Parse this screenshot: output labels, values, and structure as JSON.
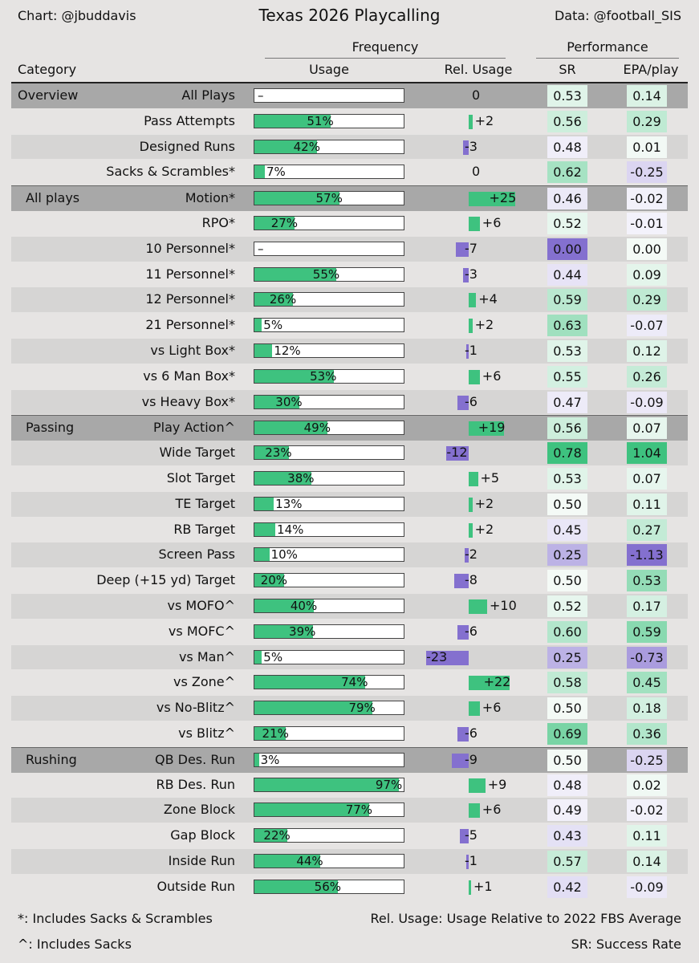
{
  "header": {
    "credit_left": "Chart: @jbuddavis",
    "title": "Texas 2026 Playcalling",
    "credit_right": "Data: @football_SIS",
    "group_frequency": "Frequency",
    "group_performance": "Performance",
    "col_category": "Category",
    "col_usage": "Usage",
    "col_rel_usage": "Rel. Usage",
    "col_sr": "SR",
    "col_epa": "EPA/play"
  },
  "footer": {
    "note_sacks_scrambles": "*: Includes Sacks & Scrambles",
    "note_sacks": "^: Includes Sacks",
    "note_rel_usage": "Rel. Usage: Usage Relative to 2022 FBS Average",
    "note_sr": "SR: Success Rate"
  },
  "colors": {
    "usage_bar": "#3ec27f",
    "positive_rel": "#3ec27f",
    "negative_rel": "#8470cf",
    "section_row": "#a8a8a8",
    "row_dark": "#d6d5d4",
    "row_light": "#e6e4e3"
  },
  "chart_data": {
    "type": "table",
    "title": "Texas 2026 Playcalling",
    "columns": [
      "Category",
      "Usage",
      "Rel. Usage",
      "SR",
      "EPA/play"
    ],
    "rows": [
      {
        "category": "Overview",
        "label": "All Plays",
        "usage": null,
        "usage_text": "–",
        "rel": 0,
        "rel_text": "0",
        "sr": 0.53,
        "sr_text": "0.53",
        "epa": 0.14,
        "epa_text": "0.14"
      },
      {
        "category": "",
        "label": "Pass Attempts",
        "usage": 51,
        "usage_text": "51%",
        "rel": 2,
        "rel_text": "+2",
        "sr": 0.56,
        "sr_text": "0.56",
        "epa": 0.29,
        "epa_text": "0.29"
      },
      {
        "category": "",
        "label": "Designed Runs",
        "usage": 42,
        "usage_text": "42%",
        "rel": -3,
        "rel_text": "-3",
        "sr": 0.48,
        "sr_text": "0.48",
        "epa": 0.01,
        "epa_text": "0.01"
      },
      {
        "category": "",
        "label": "Sacks & Scrambles*",
        "usage": 7,
        "usage_text": "7%",
        "rel": 0,
        "rel_text": "0",
        "sr": 0.62,
        "sr_text": "0.62",
        "epa": -0.25,
        "epa_text": "-0.25"
      },
      {
        "category": "All plays",
        "label": "Motion*",
        "usage": 57,
        "usage_text": "57%",
        "rel": 25,
        "rel_text": "+25",
        "sr": 0.46,
        "sr_text": "0.46",
        "epa": -0.02,
        "epa_text": "-0.02"
      },
      {
        "category": "",
        "label": "RPO*",
        "usage": 27,
        "usage_text": "27%",
        "rel": 6,
        "rel_text": "+6",
        "sr": 0.52,
        "sr_text": "0.52",
        "epa": -0.01,
        "epa_text": "-0.01"
      },
      {
        "category": "",
        "label": "10 Personnel*",
        "usage": null,
        "usage_text": "–",
        "rel": -7,
        "rel_text": "-7",
        "sr": 0.0,
        "sr_text": "0.00",
        "epa": 0.0,
        "epa_text": "0.00"
      },
      {
        "category": "",
        "label": "11 Personnel*",
        "usage": 55,
        "usage_text": "55%",
        "rel": -3,
        "rel_text": "-3",
        "sr": 0.44,
        "sr_text": "0.44",
        "epa": 0.09,
        "epa_text": "0.09"
      },
      {
        "category": "",
        "label": "12 Personnel*",
        "usage": 26,
        "usage_text": "26%",
        "rel": 4,
        "rel_text": "+4",
        "sr": 0.59,
        "sr_text": "0.59",
        "epa": 0.29,
        "epa_text": "0.29"
      },
      {
        "category": "",
        "label": "21 Personnel*",
        "usage": 5,
        "usage_text": "5%",
        "rel": 2,
        "rel_text": "+2",
        "sr": 0.63,
        "sr_text": "0.63",
        "epa": -0.07,
        "epa_text": "-0.07"
      },
      {
        "category": "",
        "label": "vs Light Box*",
        "usage": 12,
        "usage_text": "12%",
        "rel": -1,
        "rel_text": "-1",
        "sr": 0.53,
        "sr_text": "0.53",
        "epa": 0.12,
        "epa_text": "0.12"
      },
      {
        "category": "",
        "label": "vs 6 Man Box*",
        "usage": 53,
        "usage_text": "53%",
        "rel": 6,
        "rel_text": "+6",
        "sr": 0.55,
        "sr_text": "0.55",
        "epa": 0.26,
        "epa_text": "0.26"
      },
      {
        "category": "",
        "label": "vs Heavy Box*",
        "usage": 30,
        "usage_text": "30%",
        "rel": -6,
        "rel_text": "-6",
        "sr": 0.47,
        "sr_text": "0.47",
        "epa": -0.09,
        "epa_text": "-0.09"
      },
      {
        "category": "Passing",
        "label": "Play Action^",
        "usage": 49,
        "usage_text": "49%",
        "rel": 19,
        "rel_text": "+19",
        "sr": 0.56,
        "sr_text": "0.56",
        "epa": 0.07,
        "epa_text": "0.07"
      },
      {
        "category": "",
        "label": "Wide Target",
        "usage": 23,
        "usage_text": "23%",
        "rel": -12,
        "rel_text": "-12",
        "sr": 0.78,
        "sr_text": "0.78",
        "epa": 1.04,
        "epa_text": "1.04"
      },
      {
        "category": "",
        "label": "Slot Target",
        "usage": 38,
        "usage_text": "38%",
        "rel": 5,
        "rel_text": "+5",
        "sr": 0.53,
        "sr_text": "0.53",
        "epa": 0.07,
        "epa_text": "0.07"
      },
      {
        "category": "",
        "label": "TE Target",
        "usage": 13,
        "usage_text": "13%",
        "rel": 2,
        "rel_text": "+2",
        "sr": 0.5,
        "sr_text": "0.50",
        "epa": 0.11,
        "epa_text": "0.11"
      },
      {
        "category": "",
        "label": "RB Target",
        "usage": 14,
        "usage_text": "14%",
        "rel": 2,
        "rel_text": "+2",
        "sr": 0.45,
        "sr_text": "0.45",
        "epa": 0.27,
        "epa_text": "0.27"
      },
      {
        "category": "",
        "label": "Screen Pass",
        "usage": 10,
        "usage_text": "10%",
        "rel": -2,
        "rel_text": "-2",
        "sr": 0.25,
        "sr_text": "0.25",
        "epa": -1.13,
        "epa_text": "-1.13"
      },
      {
        "category": "",
        "label": "Deep (+15 yd) Target",
        "usage": 20,
        "usage_text": "20%",
        "rel": -8,
        "rel_text": "-8",
        "sr": 0.5,
        "sr_text": "0.50",
        "epa": 0.53,
        "epa_text": "0.53"
      },
      {
        "category": "",
        "label": "vs MOFO^",
        "usage": 40,
        "usage_text": "40%",
        "rel": 10,
        "rel_text": "+10",
        "sr": 0.52,
        "sr_text": "0.52",
        "epa": 0.17,
        "epa_text": "0.17"
      },
      {
        "category": "",
        "label": "vs MOFC^",
        "usage": 39,
        "usage_text": "39%",
        "rel": -6,
        "rel_text": "-6",
        "sr": 0.6,
        "sr_text": "0.60",
        "epa": 0.59,
        "epa_text": "0.59"
      },
      {
        "category": "",
        "label": "vs Man^",
        "usage": 5,
        "usage_text": "5%",
        "rel": -23,
        "rel_text": "-23",
        "sr": 0.25,
        "sr_text": "0.25",
        "epa": -0.73,
        "epa_text": "-0.73"
      },
      {
        "category": "",
        "label": "vs Zone^",
        "usage": 74,
        "usage_text": "74%",
        "rel": 22,
        "rel_text": "+22",
        "sr": 0.58,
        "sr_text": "0.58",
        "epa": 0.45,
        "epa_text": "0.45"
      },
      {
        "category": "",
        "label": "vs No-Blitz^",
        "usage": 79,
        "usage_text": "79%",
        "rel": 6,
        "rel_text": "+6",
        "sr": 0.5,
        "sr_text": "0.50",
        "epa": 0.18,
        "epa_text": "0.18"
      },
      {
        "category": "",
        "label": "vs Blitz^",
        "usage": 21,
        "usage_text": "21%",
        "rel": -6,
        "rel_text": "-6",
        "sr": 0.69,
        "sr_text": "0.69",
        "epa": 0.36,
        "epa_text": "0.36"
      },
      {
        "category": "Rushing",
        "label": "QB Des. Run",
        "usage": 3,
        "usage_text": "3%",
        "rel": -9,
        "rel_text": "-9",
        "sr": 0.5,
        "sr_text": "0.50",
        "epa": -0.25,
        "epa_text": "-0.25"
      },
      {
        "category": "",
        "label": "RB Des. Run",
        "usage": 97,
        "usage_text": "97%",
        "rel": 9,
        "rel_text": "+9",
        "sr": 0.48,
        "sr_text": "0.48",
        "epa": 0.02,
        "epa_text": "0.02"
      },
      {
        "category": "",
        "label": "Zone Block",
        "usage": 77,
        "usage_text": "77%",
        "rel": 6,
        "rel_text": "+6",
        "sr": 0.49,
        "sr_text": "0.49",
        "epa": -0.02,
        "epa_text": "-0.02"
      },
      {
        "category": "",
        "label": "Gap Block",
        "usage": 22,
        "usage_text": "22%",
        "rel": -5,
        "rel_text": "-5",
        "sr": 0.43,
        "sr_text": "0.43",
        "epa": 0.11,
        "epa_text": "0.11"
      },
      {
        "category": "",
        "label": "Inside Run",
        "usage": 44,
        "usage_text": "44%",
        "rel": -1,
        "rel_text": "-1",
        "sr": 0.57,
        "sr_text": "0.57",
        "epa": 0.14,
        "epa_text": "0.14"
      },
      {
        "category": "",
        "label": "Outside Run",
        "usage": 56,
        "usage_text": "56%",
        "rel": 1,
        "rel_text": "+1",
        "sr": 0.42,
        "sr_text": "0.42",
        "epa": -0.09,
        "epa_text": "-0.09"
      }
    ]
  }
}
